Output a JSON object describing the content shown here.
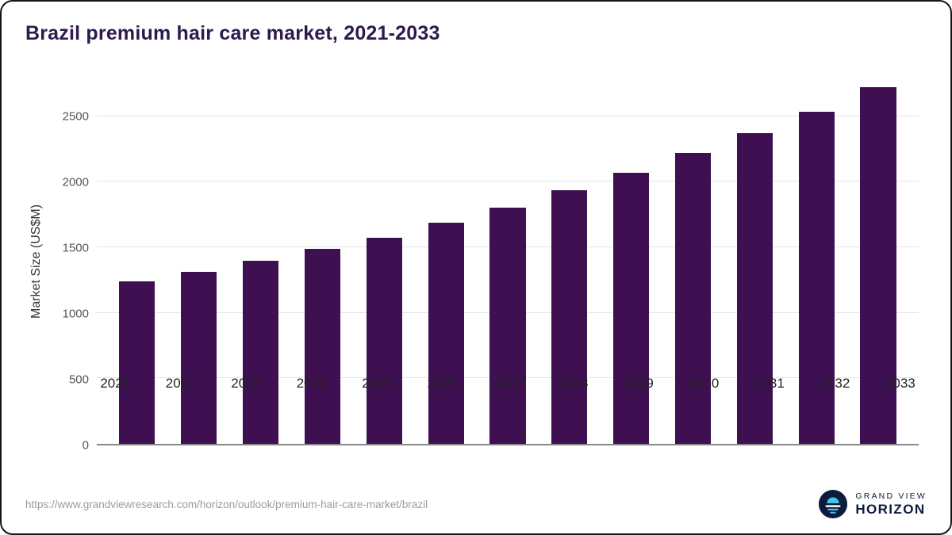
{
  "title": "Brazil premium hair care market, 2021-2033",
  "chart_data": {
    "type": "bar",
    "title": "Brazil premium hair care market, 2021-2033",
    "categories": [
      "2021",
      "2022",
      "2023",
      "2024",
      "2025",
      "2026",
      "2027",
      "2028",
      "2029",
      "2030",
      "2031",
      "2032",
      "2033"
    ],
    "values": [
      1240,
      1315,
      1400,
      1490,
      1570,
      1690,
      1805,
      1935,
      2070,
      2220,
      2370,
      2535,
      2720
    ],
    "xlabel": "",
    "ylabel": "Market Size (US$M)",
    "yticks": [
      0,
      500,
      1000,
      1500,
      2000,
      2500
    ],
    "ylim": [
      0,
      2800
    ],
    "grid": true,
    "legend": "none",
    "bar_color": "#3e1051"
  },
  "colors": {
    "title": "#2d1a4e",
    "bar": "#3e1051",
    "gridline": "#e4e4e4",
    "axis": "#888888",
    "brand_navy": "#0d1b3d",
    "brand_blue": "#45c2e8"
  },
  "footer": {
    "source_url": "https://www.grandviewresearch.com/horizon/outlook/premium-hair-care-market/brazil",
    "brand_top": "GRAND VIEW",
    "brand_bottom": "HORIZON"
  }
}
